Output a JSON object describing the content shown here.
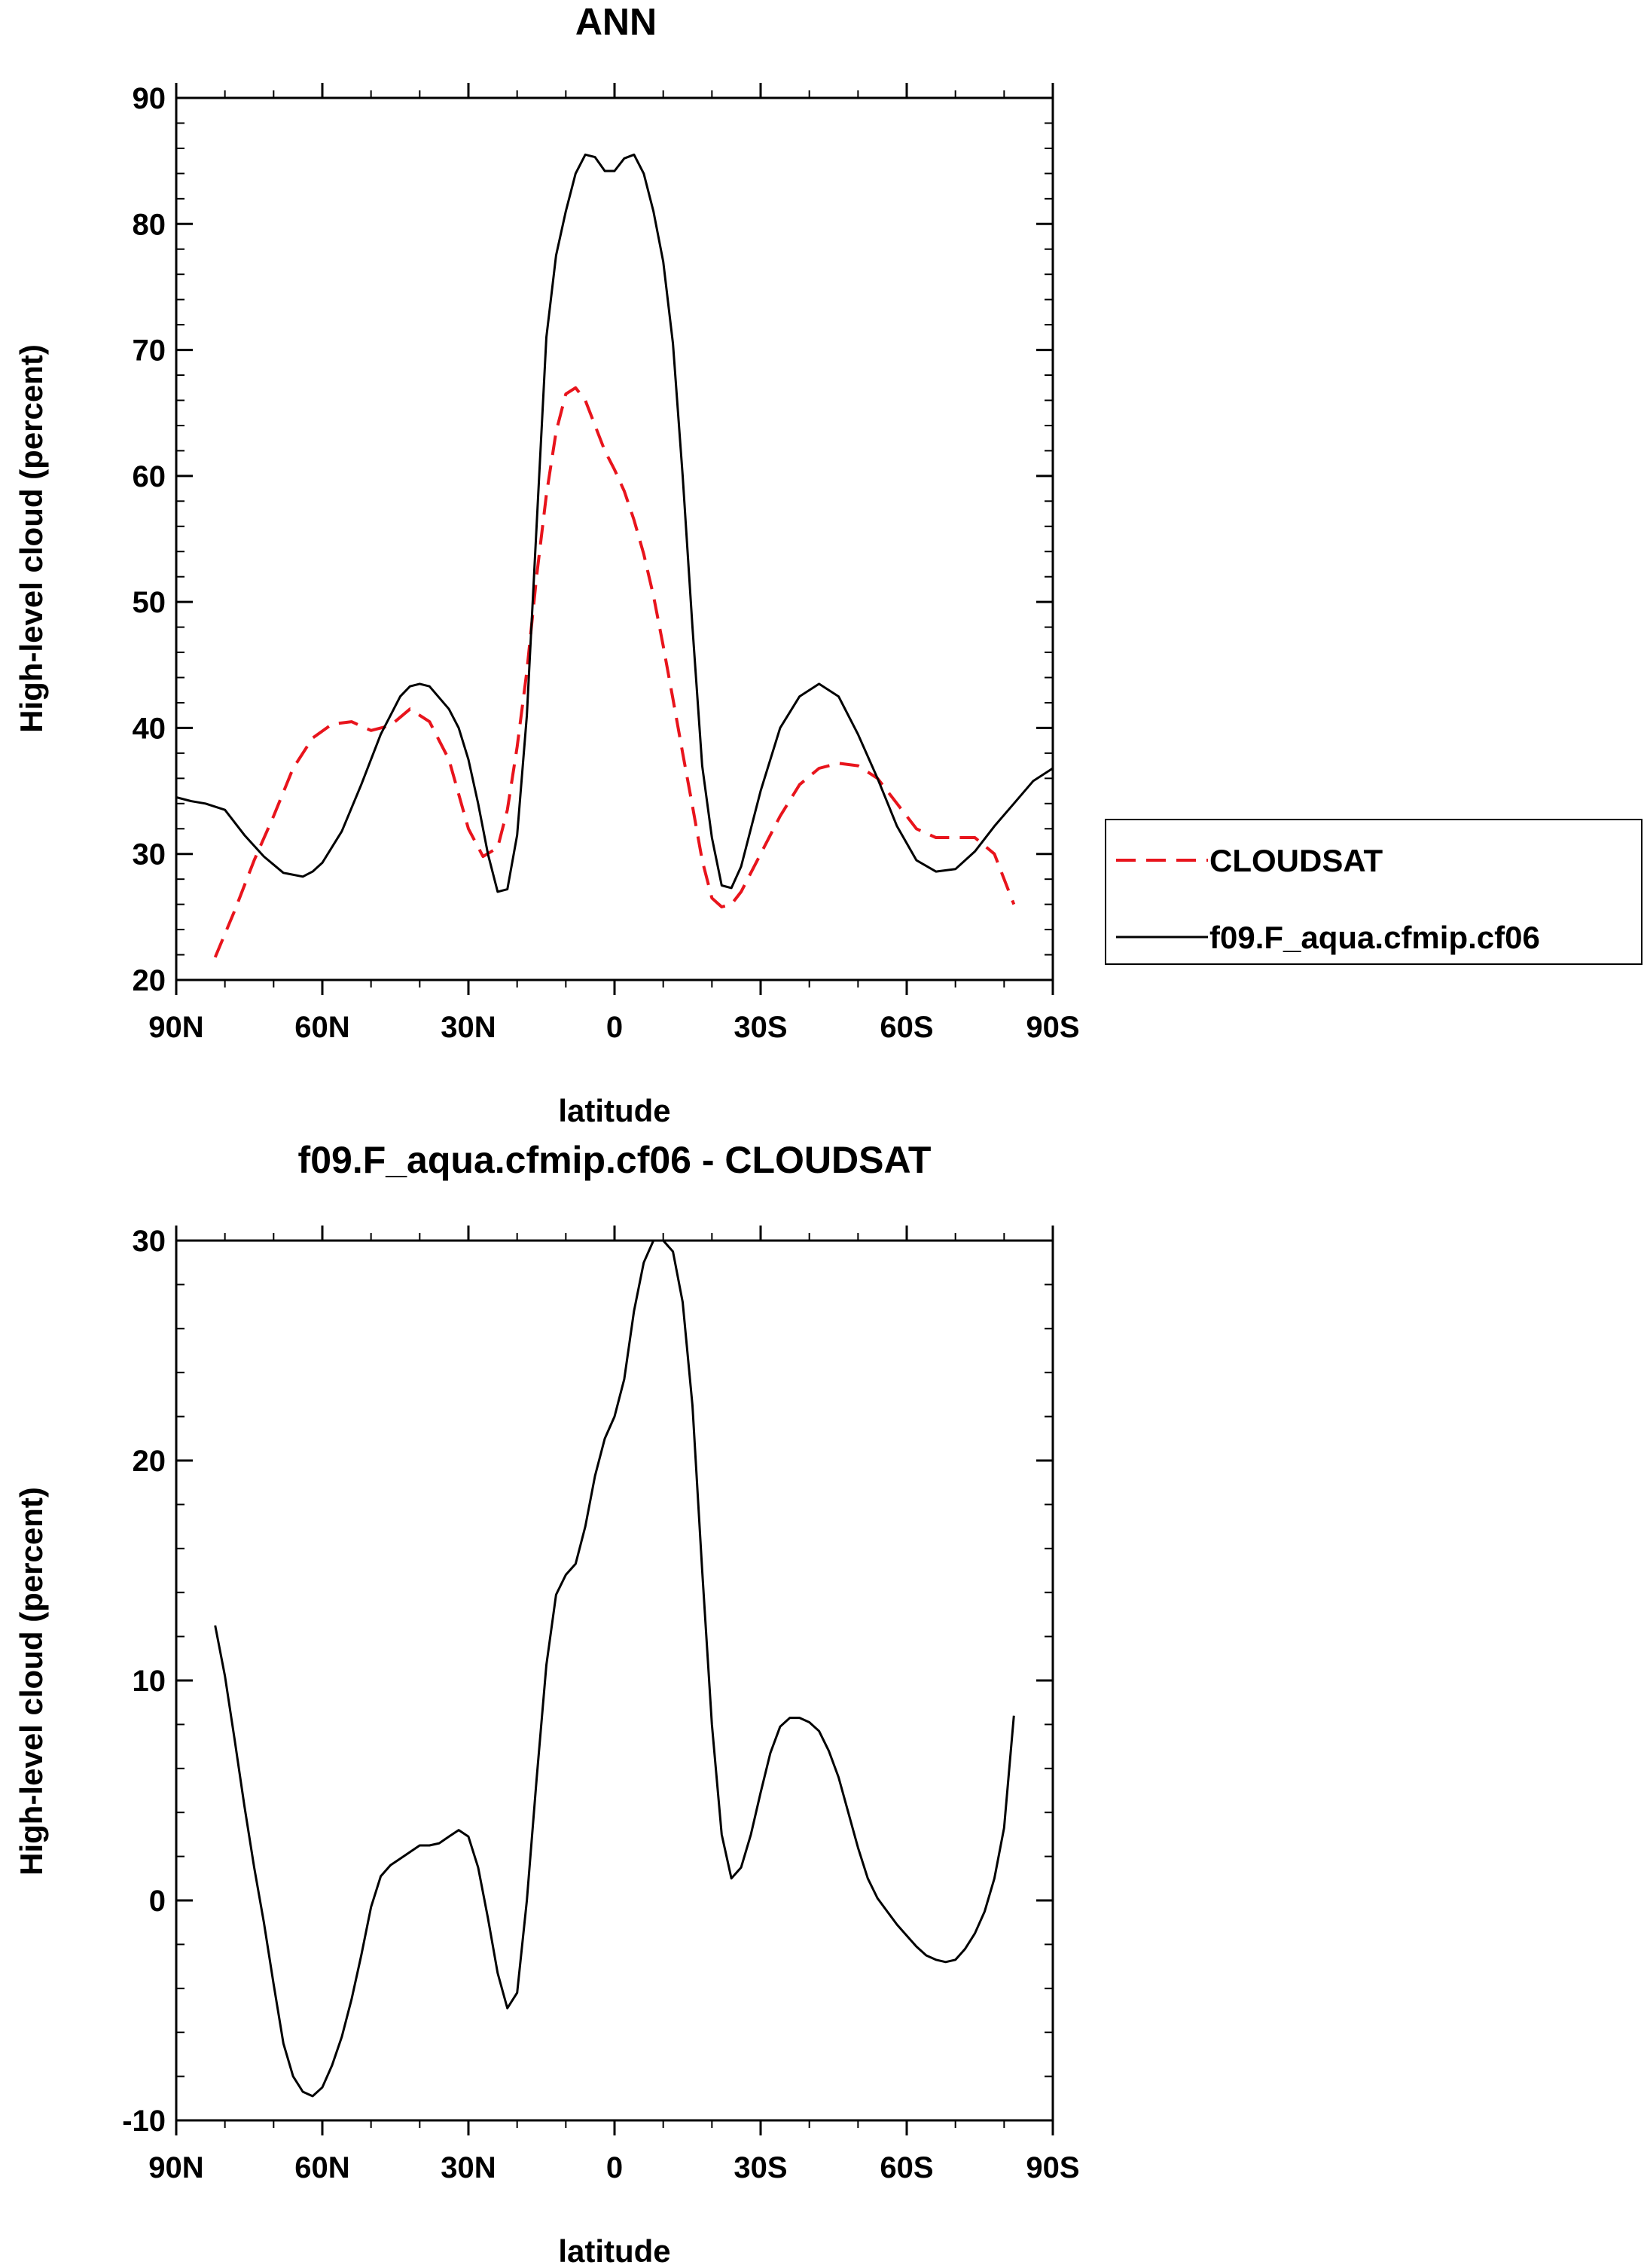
{
  "chart_data": [
    {
      "type": "line",
      "title": "ANN",
      "xlabel": "latitude",
      "ylabel": "High-level cloud (percent)",
      "xlim": [
        -90,
        90
      ],
      "ylim": [
        20,
        90
      ],
      "x_tick_values": [
        -90,
        -60,
        -30,
        0,
        30,
        60,
        90
      ],
      "x_tick_labels": [
        "90N",
        "60N",
        "30N",
        "0",
        "30S",
        "60S",
        "90S"
      ],
      "y_tick_values": [
        20,
        30,
        40,
        50,
        60,
        70,
        80,
        90
      ],
      "y_tick_labels": [
        "20",
        "30",
        "40",
        "50",
        "60",
        "70",
        "80",
        "90"
      ],
      "grid": false,
      "legend_position": "right",
      "series": [
        {
          "name": "CLOUDSAT",
          "color": "#e8141c",
          "dash": "dashed",
          "x": [
            -82,
            -78,
            -74,
            -70,
            -66,
            -62,
            -58,
            -54,
            -50,
            -46,
            -42,
            -38,
            -34,
            -30,
            -27,
            -24,
            -22,
            -20,
            -18,
            -16,
            -14,
            -12,
            -10,
            -8,
            -6,
            -4,
            -2,
            0,
            2,
            4,
            6,
            8,
            10,
            12,
            14,
            16,
            18,
            20,
            22,
            24,
            26,
            30,
            34,
            38,
            42,
            46,
            50,
            54,
            58,
            62,
            66,
            70,
            74,
            78,
            82
          ],
          "y": [
            21.8,
            25.5,
            29.5,
            33,
            36.8,
            39.2,
            40.3,
            40.5,
            39.8,
            40.2,
            41.5,
            40.5,
            37.5,
            32,
            29.8,
            30.5,
            33.5,
            38.5,
            44.5,
            52,
            58.5,
            63.5,
            66.5,
            67,
            66,
            64,
            62,
            60.5,
            58.8,
            56.5,
            53.8,
            50.5,
            46.5,
            42.3,
            38,
            33.8,
            29.5,
            26.5,
            25.8,
            26,
            27,
            30,
            33,
            35.5,
            36.8,
            37.2,
            37,
            36,
            34,
            32,
            31.3,
            31.3,
            31.3,
            30,
            26
          ]
        },
        {
          "name": "f09.F_aqua.cfmip.cf06",
          "color": "#000000",
          "dash": "solid",
          "x": [
            -90,
            -87,
            -84,
            -80,
            -76,
            -72,
            -68,
            -64,
            -62,
            -60,
            -56,
            -52,
            -48,
            -44,
            -42,
            -40,
            -38,
            -34,
            -32,
            -30,
            -28,
            -26,
            -24,
            -22,
            -20,
            -18,
            -16,
            -14,
            -12,
            -10,
            -8,
            -6,
            -4,
            -2,
            0,
            2,
            4,
            6,
            8,
            10,
            12,
            14,
            16,
            18,
            20,
            22,
            24,
            26,
            30,
            34,
            38,
            42,
            46,
            50,
            54,
            58,
            62,
            66,
            70,
            74,
            78,
            82,
            86,
            90
          ],
          "y": [
            34.5,
            34.2,
            34.0,
            33.5,
            31.5,
            29.8,
            28.5,
            28.2,
            28.6,
            29.3,
            31.8,
            35.5,
            39.5,
            42.5,
            43.3,
            43.5,
            43.3,
            41.5,
            40,
            37.5,
            34,
            30,
            27,
            27.2,
            31.5,
            41,
            56,
            71,
            77.5,
            81,
            84,
            85.5,
            85.3,
            84.2,
            84.2,
            85.2,
            85.5,
            84,
            81,
            77,
            70.5,
            60,
            48,
            37,
            31.3,
            27.5,
            27.3,
            29,
            35,
            40,
            42.5,
            43.5,
            42.5,
            39.5,
            36,
            32.2,
            29.5,
            28.6,
            28.8,
            30.2,
            32.2,
            34,
            35.8,
            36.8
          ]
        }
      ]
    },
    {
      "type": "line",
      "title": "f09.F_aqua.cfmip.cf06 - CLOUDSAT",
      "xlabel": "latitude",
      "ylabel": "High-level cloud (percent)",
      "xlim": [
        -90,
        90
      ],
      "ylim": [
        -10,
        30
      ],
      "x_tick_values": [
        -90,
        -60,
        -30,
        0,
        30,
        60,
        90
      ],
      "x_tick_labels": [
        "90N",
        "60N",
        "30N",
        "0",
        "30S",
        "60S",
        "90S"
      ],
      "y_tick_values": [
        -10,
        0,
        10,
        20,
        30
      ],
      "y_tick_labels": [
        "-10",
        "0",
        "10",
        "20",
        "30"
      ],
      "grid": false,
      "series": [
        {
          "color": "#000000",
          "dash": "solid",
          "x": [
            -82,
            -80,
            -78,
            -76,
            -74,
            -72,
            -70,
            -68,
            -66,
            -64,
            -62,
            -60,
            -58,
            -56,
            -54,
            -52,
            -50,
            -48,
            -46,
            -44,
            -42,
            -40,
            -38,
            -36,
            -34,
            -32,
            -30,
            -28,
            -26,
            -24,
            -22,
            -20,
            -18,
            -16,
            -14,
            -12,
            -10,
            -8,
            -6,
            -4,
            -2,
            0,
            2,
            4,
            6,
            8,
            10,
            12,
            14,
            16,
            18,
            20,
            22,
            24,
            26,
            28,
            30,
            32,
            34,
            36,
            38,
            40,
            42,
            44,
            46,
            48,
            50,
            52,
            54,
            56,
            58,
            60,
            62,
            64,
            66,
            68,
            70,
            72,
            74,
            76,
            78,
            80,
            82
          ],
          "y": [
            12.5,
            10.2,
            7.3,
            4.3,
            1.5,
            -1,
            -3.8,
            -6.5,
            -8,
            -8.7,
            -8.9,
            -8.5,
            -7.5,
            -6.2,
            -4.5,
            -2.5,
            -0.3,
            1.1,
            1.6,
            1.9,
            2.2,
            2.5,
            2.5,
            2.6,
            2.9,
            3.2,
            2.9,
            1.5,
            -0.8,
            -3.3,
            -4.9,
            -4.2,
            0,
            5.5,
            10.7,
            13.9,
            14.8,
            15.3,
            17,
            19.3,
            21,
            22,
            23.7,
            26.8,
            29,
            30,
            30,
            29.5,
            27.2,
            22.5,
            15,
            8,
            3,
            1,
            1.5,
            3,
            4.9,
            6.7,
            7.9,
            8.3,
            8.3,
            8.1,
            7.7,
            6.8,
            5.6,
            4,
            2.4,
            1,
            0.1,
            -0.5,
            -1.1,
            -1.6,
            -2.1,
            -2.5,
            -2.7,
            -2.8,
            -2.7,
            -2.2,
            -1.5,
            -0.5,
            1,
            3.3,
            8.4
          ]
        }
      ]
    }
  ]
}
